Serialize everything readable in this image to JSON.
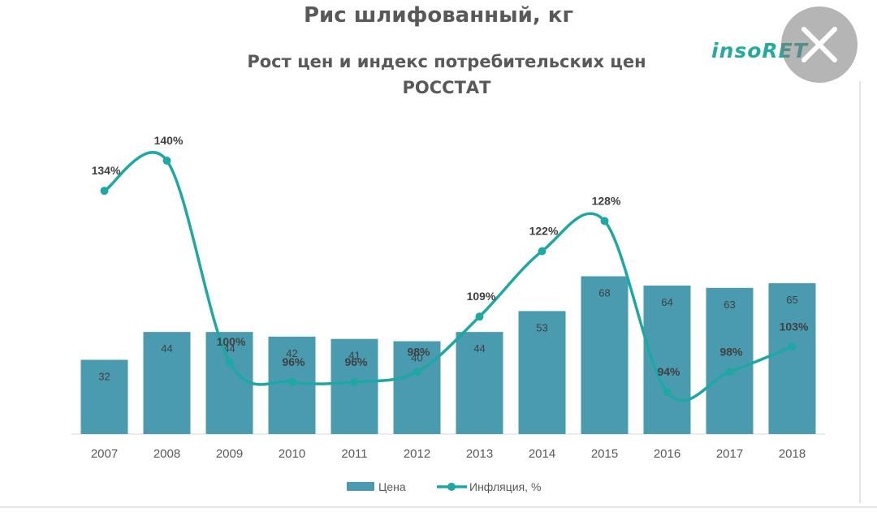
{
  "header": {
    "title": "Рис шлифованный, кг",
    "subtitle_line1": "Рост цен и индекс потребительских цен",
    "subtitle_line2": "РОССТАТ",
    "logo_text": "insoRET"
  },
  "overlay": {
    "close_icon": "close-icon"
  },
  "colors": {
    "bar": "#4a9bb0",
    "line": "#1fa7a3",
    "text": "#595959",
    "logo": "#26a99f"
  },
  "chart_data": {
    "type": "bar",
    "categories": [
      "2007",
      "2008",
      "2009",
      "2010",
      "2011",
      "2012",
      "2013",
      "2014",
      "2015",
      "2016",
      "2017",
      "2018"
    ],
    "series": [
      {
        "name": "Цена",
        "type": "bar",
        "values": [
          32,
          44,
          44,
          42,
          41,
          40,
          44,
          53,
          68,
          64,
          63,
          65
        ]
      },
      {
        "name": "Инфляция, %",
        "type": "line",
        "values": [
          134,
          140,
          100,
          96,
          96,
          98,
          109,
          122,
          128,
          94,
          98,
          103
        ]
      }
    ],
    "line_labels": [
      "134%",
      "140%",
      "100%",
      "96%",
      "96%",
      "98%",
      "109%",
      "122%",
      "128%",
      "94%",
      "98%",
      "103%"
    ],
    "legend": [
      "Цена",
      "Инфляция, %"
    ],
    "legend_position": "bottom",
    "grid": false
  }
}
